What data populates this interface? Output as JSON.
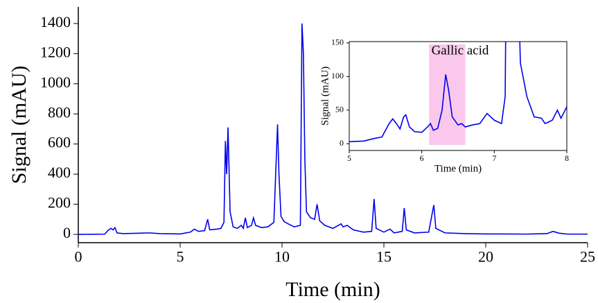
{
  "chart_data": [
    {
      "type": "line",
      "xlabel": "Time (min)",
      "ylabel": "Signal (mAU)",
      "color": "#0000ee",
      "box": false,
      "xlim": [
        0,
        25
      ],
      "ylim": [
        -55,
        1510
      ],
      "xticks": [
        0,
        5,
        10,
        15,
        20,
        25
      ],
      "yticks": [
        0,
        200,
        400,
        600,
        800,
        1000,
        1200,
        1400
      ],
      "x": [
        0,
        1.3,
        1.45,
        1.6,
        1.7,
        1.8,
        1.9,
        2.2,
        3,
        3.5,
        4,
        5,
        5.5,
        5.7,
        5.9,
        6.2,
        6.35,
        6.45,
        6.8,
        7.0,
        7.15,
        7.22,
        7.28,
        7.35,
        7.45,
        7.6,
        7.8,
        8.0,
        8.1,
        8.2,
        8.3,
        8.5,
        8.6,
        8.7,
        9.0,
        9.3,
        9.6,
        9.78,
        9.85,
        9.95,
        10.1,
        10.3,
        10.6,
        10.9,
        10.98,
        11.05,
        11.12,
        11.2,
        11.4,
        11.6,
        11.72,
        11.85,
        12.1,
        12.5,
        12.9,
        13.0,
        13.2,
        13.5,
        14,
        14.4,
        14.52,
        14.62,
        15,
        15.3,
        15.5,
        15.9,
        16.0,
        16.1,
        16.5,
        17.2,
        17.45,
        17.55,
        18,
        19,
        20,
        21,
        22,
        23,
        23.3,
        23.6,
        24,
        25
      ],
      "values": [
        0,
        2,
        25,
        40,
        30,
        45,
        10,
        5,
        8,
        10,
        5,
        3,
        15,
        35,
        20,
        25,
        100,
        30,
        35,
        40,
        80,
        620,
        400,
        710,
        150,
        50,
        40,
        60,
        40,
        110,
        45,
        60,
        110,
        60,
        45,
        50,
        80,
        730,
        400,
        120,
        85,
        70,
        50,
        60,
        1400,
        1200,
        500,
        150,
        110,
        100,
        200,
        90,
        60,
        40,
        70,
        50,
        60,
        30,
        15,
        20,
        235,
        40,
        15,
        35,
        10,
        20,
        175,
        30,
        10,
        15,
        195,
        40,
        10,
        5,
        3,
        3,
        2,
        5,
        20,
        8,
        2,
        2
      ]
    },
    {
      "type": "line",
      "xlabel": "Time (min)",
      "ylabel": "Signal (mAU)",
      "color": "#0000ee",
      "box": true,
      "annotation": "Gallic acid",
      "highlight": [
        6.1,
        6.6
      ],
      "highlight_color": "#f9c8ec",
      "xlim": [
        5,
        8
      ],
      "ylim": [
        -10,
        152
      ],
      "xticks": [
        5,
        6,
        7,
        8
      ],
      "yticks": [
        0,
        50,
        100,
        150
      ],
      "x": [
        5,
        5.2,
        5.35,
        5.45,
        5.55,
        5.6,
        5.65,
        5.7,
        5.75,
        5.78,
        5.83,
        5.9,
        6.0,
        6.08,
        6.12,
        6.16,
        6.22,
        6.28,
        6.33,
        6.37,
        6.42,
        6.5,
        6.55,
        6.6,
        6.7,
        6.8,
        6.9,
        7.0,
        7.1,
        7.15,
        7.16,
        7.34,
        7.36,
        7.45,
        7.55,
        7.65,
        7.7,
        7.8,
        7.87,
        7.92,
        8.0
      ],
      "values": [
        3,
        4,
        8,
        10,
        30,
        37,
        30,
        22,
        40,
        43,
        25,
        18,
        17,
        25,
        30,
        20,
        23,
        50,
        103,
        80,
        40,
        28,
        30,
        25,
        28,
        30,
        45,
        35,
        30,
        70,
        200,
        200,
        120,
        70,
        40,
        38,
        30,
        35,
        50,
        38,
        55
      ]
    }
  ]
}
